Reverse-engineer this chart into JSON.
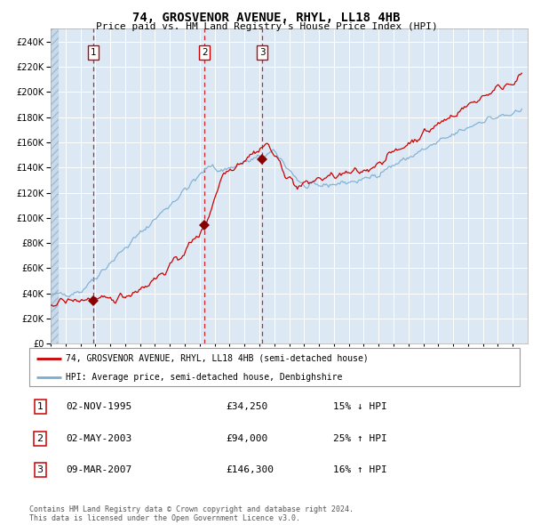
{
  "title": "74, GROSVENOR AVENUE, RHYL, LL18 4HB",
  "subtitle": "Price paid vs. HM Land Registry's House Price Index (HPI)",
  "background_color": "#dce9f5",
  "red_line_color": "#cc0000",
  "blue_line_color": "#7aadd4",
  "sale_marker_color": "#880000",
  "dashed_line_color": "#cc0000",
  "ylim": [
    0,
    250000
  ],
  "yticks": [
    0,
    20000,
    40000,
    60000,
    80000,
    100000,
    120000,
    140000,
    160000,
    180000,
    200000,
    220000,
    240000
  ],
  "sale1_year": 1995.84,
  "sale1_price": 34250,
  "sale1_label": "1",
  "sale2_year": 2003.33,
  "sale2_price": 94000,
  "sale2_label": "2",
  "sale3_year": 2007.19,
  "sale3_price": 146300,
  "sale3_label": "3",
  "legend_line1": "74, GROSVENOR AVENUE, RHYL, LL18 4HB (semi-detached house)",
  "legend_line2": "HPI: Average price, semi-detached house, Denbighshire",
  "table_row1": [
    "1",
    "02-NOV-1995",
    "£34,250",
    "15% ↓ HPI"
  ],
  "table_row2": [
    "2",
    "02-MAY-2003",
    "£94,000",
    "25% ↑ HPI"
  ],
  "table_row3": [
    "3",
    "09-MAR-2007",
    "£146,300",
    "16% ↑ HPI"
  ],
  "footnote": "Contains HM Land Registry data © Crown copyright and database right 2024.\nThis data is licensed under the Open Government Licence v3.0.",
  "xmin": 1993.0,
  "xmax": 2025.0
}
